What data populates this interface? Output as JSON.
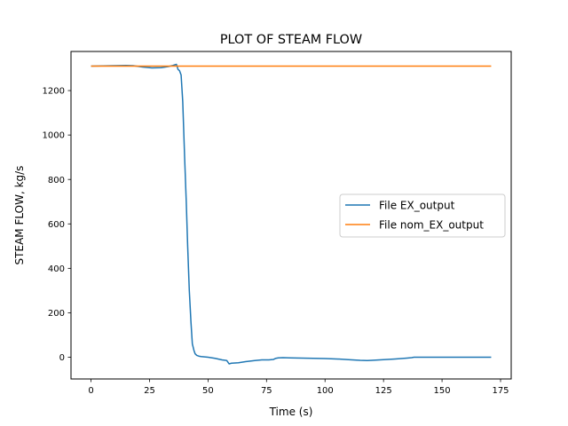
{
  "chart_data": {
    "type": "line",
    "title": "PLOT OF STEAM FLOW",
    "xlabel": "Time (s)",
    "ylabel": "STEAM FLOW, kg/s",
    "xlim": [
      -8.55,
      179.55
    ],
    "ylim": [
      -98,
      1376
    ],
    "xticks": [
      0,
      25,
      50,
      75,
      100,
      125,
      150,
      175
    ],
    "yticks": [
      0,
      200,
      400,
      600,
      800,
      1000,
      1200
    ],
    "grid": false,
    "legend_position": "center-right",
    "series": [
      {
        "name": "File EX_output",
        "color": "#1f77b4",
        "x": [
          0,
          5,
          10,
          15,
          18,
          22,
          26,
          30,
          33,
          35,
          36.5,
          37.2,
          37.8,
          38.5,
          39.2,
          40,
          40.7,
          41.3,
          42,
          42.7,
          43.3,
          44,
          44.5,
          45.2,
          46,
          47,
          48,
          50,
          53,
          56,
          58,
          59,
          60,
          63,
          66,
          70,
          73,
          76,
          78,
          79,
          80,
          82,
          85,
          90,
          95,
          100,
          105,
          110,
          115,
          118,
          120,
          125,
          130,
          135,
          137,
          138,
          140,
          150,
          160,
          171
        ],
        "y": [
          1310,
          1311,
          1312,
          1313,
          1312,
          1306,
          1302,
          1303,
          1308,
          1313,
          1318,
          1295,
          1290,
          1270,
          1150,
          900,
          700,
          500,
          300,
          160,
          60,
          30,
          15,
          8,
          5,
          3,
          2,
          0,
          -5,
          -12,
          -15,
          -30,
          -27,
          -25,
          -20,
          -15,
          -12,
          -12,
          -10,
          -5,
          -3,
          -2,
          -3,
          -4,
          -5,
          -6,
          -8,
          -11,
          -14,
          -15,
          -14,
          -11,
          -8,
          -4,
          -2,
          0,
          0,
          0,
          0,
          0
        ]
      },
      {
        "name": "File nom_EX_output",
        "color": "#ff7f0e",
        "x": [
          0,
          171
        ],
        "y": [
          1310,
          1310
        ]
      }
    ]
  }
}
